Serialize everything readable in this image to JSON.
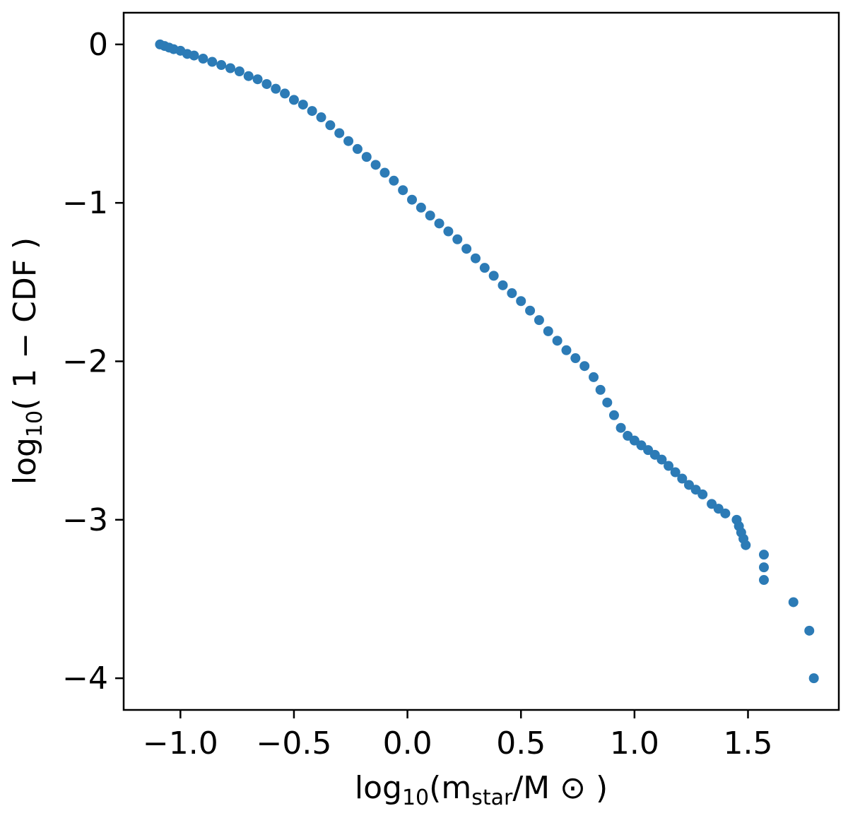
{
  "chart_data": {
    "type": "scatter",
    "title": "",
    "xlabel": {
      "prefix": "log",
      "sub1": "10",
      "mid": "(m",
      "sub2": "star",
      "suffix": "/M ⊙ )"
    },
    "ylabel": {
      "prefix": "log",
      "sub1": "10",
      "suffix": "( 1 − CDF )"
    },
    "xlim": [
      -1.25,
      1.9
    ],
    "ylim": [
      -4.2,
      0.2
    ],
    "x_ticks": [
      {
        "value": -1.0,
        "label": "−1.0"
      },
      {
        "value": -0.5,
        "label": "−0.5"
      },
      {
        "value": 0.0,
        "label": "0.0"
      },
      {
        "value": 0.5,
        "label": "0.5"
      },
      {
        "value": 1.0,
        "label": "1.0"
      },
      {
        "value": 1.5,
        "label": "1.5"
      }
    ],
    "y_ticks": [
      {
        "value": 0,
        "label": "0"
      },
      {
        "value": -1,
        "label": "−1"
      },
      {
        "value": -2,
        "label": "−2"
      },
      {
        "value": -3,
        "label": "−3"
      },
      {
        "value": -4,
        "label": "−4"
      }
    ],
    "grid": false,
    "color": "#2c7bb6",
    "series": [
      {
        "points": [
          [
            -1.09,
            0.0
          ],
          [
            -1.07,
            -0.01
          ],
          [
            -1.05,
            -0.02
          ],
          [
            -1.03,
            -0.03
          ],
          [
            -1.0,
            -0.04
          ],
          [
            -0.97,
            -0.06
          ],
          [
            -0.94,
            -0.07
          ],
          [
            -0.9,
            -0.09
          ],
          [
            -0.86,
            -0.11
          ],
          [
            -0.82,
            -0.13
          ],
          [
            -0.78,
            -0.15
          ],
          [
            -0.74,
            -0.17
          ],
          [
            -0.7,
            -0.2
          ],
          [
            -0.66,
            -0.22
          ],
          [
            -0.62,
            -0.25
          ],
          [
            -0.58,
            -0.28
          ],
          [
            -0.54,
            -0.31
          ],
          [
            -0.5,
            -0.35
          ],
          [
            -0.46,
            -0.38
          ],
          [
            -0.42,
            -0.42
          ],
          [
            -0.38,
            -0.46
          ],
          [
            -0.34,
            -0.51
          ],
          [
            -0.3,
            -0.56
          ],
          [
            -0.26,
            -0.61
          ],
          [
            -0.22,
            -0.66
          ],
          [
            -0.18,
            -0.71
          ],
          [
            -0.14,
            -0.76
          ],
          [
            -0.1,
            -0.81
          ],
          [
            -0.06,
            -0.86
          ],
          [
            -0.02,
            -0.92
          ],
          [
            0.02,
            -0.98
          ],
          [
            0.06,
            -1.03
          ],
          [
            0.1,
            -1.08
          ],
          [
            0.14,
            -1.13
          ],
          [
            0.18,
            -1.18
          ],
          [
            0.22,
            -1.23
          ],
          [
            0.26,
            -1.29
          ],
          [
            0.3,
            -1.35
          ],
          [
            0.34,
            -1.41
          ],
          [
            0.38,
            -1.46
          ],
          [
            0.42,
            -1.52
          ],
          [
            0.46,
            -1.57
          ],
          [
            0.5,
            -1.62
          ],
          [
            0.54,
            -1.68
          ],
          [
            0.58,
            -1.74
          ],
          [
            0.62,
            -1.81
          ],
          [
            0.66,
            -1.87
          ],
          [
            0.7,
            -1.93
          ],
          [
            0.74,
            -1.98
          ],
          [
            0.78,
            -2.03
          ],
          [
            0.82,
            -2.1
          ],
          [
            0.85,
            -2.18
          ],
          [
            0.88,
            -2.26
          ],
          [
            0.91,
            -2.34
          ],
          [
            0.94,
            -2.42
          ],
          [
            0.97,
            -2.47
          ],
          [
            1.0,
            -2.5
          ],
          [
            1.03,
            -2.53
          ],
          [
            1.06,
            -2.56
          ],
          [
            1.09,
            -2.59
          ],
          [
            1.12,
            -2.62
          ],
          [
            1.15,
            -2.66
          ],
          [
            1.18,
            -2.7
          ],
          [
            1.21,
            -2.74
          ],
          [
            1.24,
            -2.78
          ],
          [
            1.27,
            -2.81
          ],
          [
            1.3,
            -2.84
          ],
          [
            1.34,
            -2.9
          ],
          [
            1.37,
            -2.93
          ],
          [
            1.4,
            -2.96
          ],
          [
            1.45,
            -3.0
          ],
          [
            1.46,
            -3.04
          ],
          [
            1.47,
            -3.08
          ],
          [
            1.48,
            -3.12
          ],
          [
            1.49,
            -3.16
          ],
          [
            1.57,
            -3.22
          ],
          [
            1.57,
            -3.3
          ],
          [
            1.57,
            -3.38
          ],
          [
            1.7,
            -3.52
          ],
          [
            1.77,
            -3.7
          ],
          [
            1.79,
            -4.0
          ]
        ]
      }
    ]
  }
}
